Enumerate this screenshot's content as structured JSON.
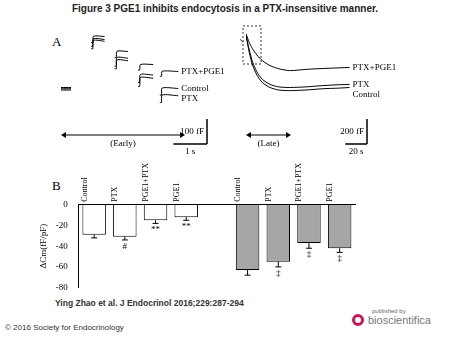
{
  "title": "Figure 3 PGE1 inhibits endocytosis in a PTX-insensitive manner.",
  "citation": "Ying Zhao et al. J Endocrinol 2016;229:287-294",
  "copyright": "© 2016 Society for Endocrinology",
  "publisher": {
    "prefix": "published by",
    "name": "bioscientifica"
  },
  "chart_data": [
    {
      "panel": "A",
      "type": "line",
      "annotation": "(Early)",
      "xlim": [
        0,
        4
      ],
      "ylim": [
        0,
        400
      ],
      "tick_labels": false,
      "grid": false,
      "scale_bars": [
        {
          "axis": "y",
          "value": 100,
          "label": "100 fF"
        },
        {
          "axis": "x",
          "value": 1,
          "label": "1 s"
        }
      ],
      "series": [
        {
          "name": "PTX+PGE1",
          "color": "#000000",
          "x": [
            0,
            0.3,
            0.6,
            0.9,
            0.95,
            0.97,
            1.3,
            1.45,
            1.6,
            1.65,
            1.67,
            2.0,
            2.15,
            2.3,
            2.35,
            2.37,
            2.75,
            2.85,
            2.95,
            3.0,
            3.02,
            3.5
          ],
          "values": [
            170,
            170,
            null,
            350,
            350,
            375,
            374,
            null,
            290,
            290,
            315,
            314,
            null,
            240,
            240,
            262,
            262,
            null,
            215,
            215,
            235,
            234
          ]
        },
        {
          "name": "Control",
          "color": "#000000",
          "x": [
            0,
            0.3,
            0.6,
            0.9,
            0.95,
            0.97,
            1.3,
            1.45,
            1.6,
            1.65,
            1.67,
            2.0,
            2.15,
            2.3,
            2.35,
            2.37,
            2.75,
            2.85,
            2.95,
            3.0,
            3.02,
            3.5
          ],
          "values": [
            165,
            165,
            null,
            335,
            335,
            365,
            362,
            null,
            255,
            255,
            290,
            287,
            null,
            190,
            190,
            222,
            220,
            null,
            140,
            140,
            168,
            166
          ]
        },
        {
          "name": "PTX",
          "color": "#000000",
          "x": [
            0,
            0.3,
            0.6,
            0.9,
            0.95,
            0.97,
            1.3,
            1.45,
            1.6,
            1.65,
            1.67,
            2.0,
            2.15,
            2.3,
            2.35,
            2.37,
            2.75,
            2.85,
            2.95,
            3.0,
            3.02,
            3.5
          ],
          "values": [
            160,
            160,
            null,
            325,
            325,
            358,
            355,
            null,
            245,
            245,
            280,
            277,
            null,
            175,
            175,
            210,
            207,
            null,
            110,
            110,
            140,
            137
          ]
        }
      ]
    },
    {
      "type": "line",
      "annotation": "(Late)",
      "xlim": [
        0,
        100
      ],
      "ylim": [
        0,
        800
      ],
      "tick_labels": false,
      "grid": false,
      "scale_bars": [
        {
          "axis": "y",
          "value": 200,
          "label": "200 fF"
        },
        {
          "axis": "x",
          "value": 20,
          "label": "20 s"
        }
      ],
      "series": [
        {
          "name": "PTX+PGE1",
          "color": "#000000",
          "x": [
            0,
            3,
            6,
            10,
            15,
            22,
            30,
            40,
            55,
            70,
            85,
            95
          ],
          "values": [
            770,
            700,
            650,
            600,
            555,
            515,
            490,
            475,
            485,
            492,
            497,
            500
          ]
        },
        {
          "name": "PTX",
          "color": "#000000",
          "x": [
            0,
            3,
            6,
            10,
            15,
            22,
            30,
            40,
            55,
            70,
            85,
            95
          ],
          "values": [
            760,
            640,
            545,
            465,
            405,
            365,
            345,
            340,
            345,
            355,
            362,
            365
          ]
        },
        {
          "name": "Control",
          "color": "#000000",
          "x": [
            0,
            3,
            6,
            10,
            15,
            22,
            30,
            40,
            55,
            70,
            85,
            95
          ],
          "values": [
            760,
            620,
            520,
            440,
            380,
            340,
            320,
            315,
            320,
            330,
            335,
            340
          ]
        }
      ]
    },
    {
      "panel": "B",
      "type": "bar",
      "y_label": "ΔCm(fF/pF)",
      "categories": [
        "Control",
        "PTX",
        "PGE1+PTX",
        "PGE1",
        null,
        "Control",
        "PTX",
        "PGE1+PTX",
        "PGE1"
      ],
      "values": [
        -29,
        -31,
        -15,
        -12,
        null,
        -63,
        -55,
        -37,
        -42
      ],
      "errors": [
        3,
        3,
        3,
        3,
        null,
        5,
        5,
        5,
        4
      ],
      "significance": [
        null,
        "#",
        "**",
        "**",
        null,
        null,
        "‡",
        "‡",
        "‡"
      ],
      "colors": [
        "#ffffff",
        "#ffffff",
        "#ffffff",
        "#ffffff",
        null,
        "#a6a6a6",
        "#a6a6a6",
        "#a6a6a6",
        "#a6a6a6"
      ],
      "ylim": [
        -80,
        0
      ],
      "yticks": [
        0,
        -20,
        -40,
        -60,
        -80
      ],
      "grid": false
    }
  ]
}
